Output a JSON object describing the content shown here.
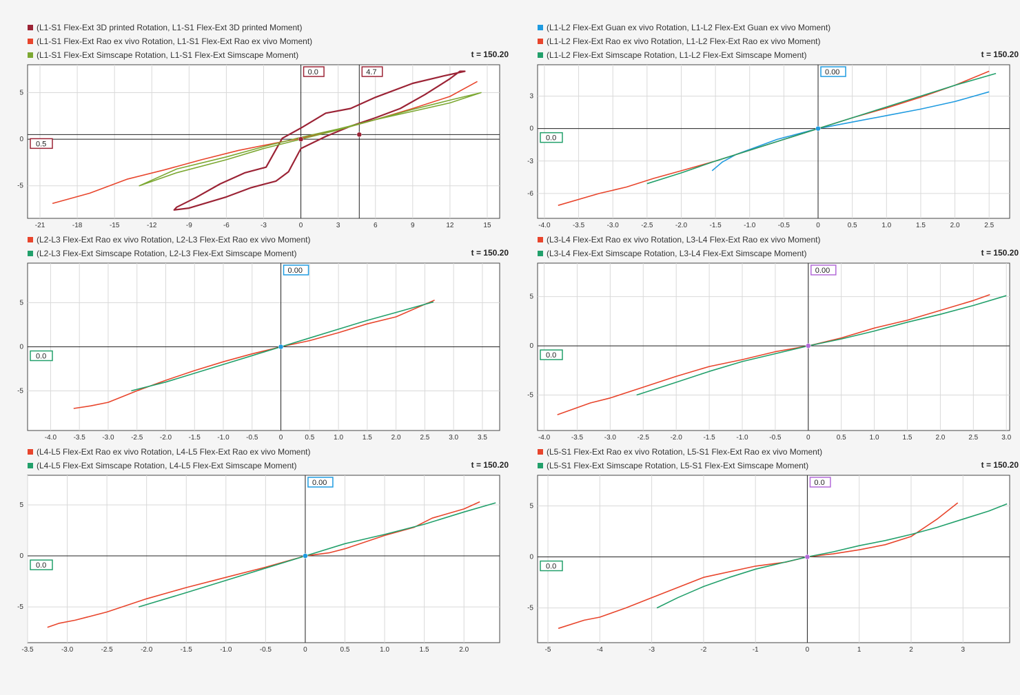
{
  "time_label": "t = 150.20",
  "chart_data": [
    {
      "type": "line",
      "xlim": [
        -22,
        16
      ],
      "ylim": [
        -8.5,
        8
      ],
      "xticks": [
        "-21",
        "-18",
        "-15",
        "-12",
        "-9",
        "-6",
        "-3",
        "0",
        "3",
        "6",
        "9",
        "12",
        "15"
      ],
      "yticks": [
        "5",
        "0",
        "-5"
      ],
      "grid": true,
      "legend_position": "top-left",
      "cursor_x": [
        {
          "value": "0.0",
          "x": 0,
          "color": "#9b2335"
        },
        {
          "value": "4.7",
          "x": 4.7,
          "color": "#9b2335"
        }
      ],
      "cursor_y": [
        {
          "value": "0.5",
          "y": 0.5,
          "color": "#9b2335"
        }
      ],
      "series": [
        {
          "name": "(L1-S1 Flex-Ext 3D printed  Rotation, L1-S1 Flex-Ext 3D printed  Moment)",
          "color": "#9b2335",
          "loop": true,
          "x": [
            -2.8,
            -4.5,
            -6.5,
            -8.5,
            -10,
            -10.2,
            -9,
            -6,
            -4,
            -2,
            -1,
            0,
            2,
            4,
            6,
            8,
            10,
            12,
            12.8,
            13.2,
            11.5,
            9,
            6,
            4,
            2,
            0,
            -1.5
          ],
          "y": [
            -3.0,
            -3.6,
            -4.8,
            -6.3,
            -7.3,
            -7.6,
            -7.4,
            -6.2,
            -5.2,
            -4.5,
            -3.5,
            -1.0,
            0.3,
            1.4,
            2.3,
            3.3,
            4.8,
            6.5,
            7.3,
            7.3,
            6.8,
            6.0,
            4.5,
            3.3,
            2.8,
            1.2,
            0.1
          ]
        },
        {
          "name": "(L1-S1 Flex-Ext Rao ex vivo Rotation, L1-S1 Flex-Ext Rao ex vivo Moment)",
          "color": "#e8452c",
          "x": [
            -20,
            -17,
            -14,
            -11,
            -8,
            -5,
            -2,
            0,
            3,
            6,
            9,
            12,
            14.2
          ],
          "y": [
            -6.9,
            -5.8,
            -4.3,
            -3.3,
            -2.2,
            -1.2,
            -0.4,
            0.1,
            1.0,
            2.1,
            3.3,
            4.6,
            6.2
          ]
        },
        {
          "name": "(L1-S1 Flex-Ext Simscape Rotation, L1-S1 Flex-Ext Simscape Moment)",
          "color": "#7ca832",
          "loop": true,
          "x": [
            -13,
            -10,
            -6,
            -3,
            0,
            3,
            6,
            9,
            12,
            14.5,
            12,
            9,
            6,
            3,
            0,
            -3,
            -6,
            -10
          ],
          "y": [
            -5.0,
            -3.6,
            -2.2,
            -1.0,
            0.0,
            1.0,
            2.1,
            3.2,
            4.2,
            5.0,
            3.9,
            3.0,
            2.1,
            1.1,
            0.2,
            -0.8,
            -1.9,
            -3.2
          ]
        }
      ]
    },
    {
      "type": "line",
      "xlim": [
        -4.1,
        2.8
      ],
      "ylim": [
        -8.3,
        5.9
      ],
      "xticks": [
        "-4.0",
        "-3.5",
        "-3.0",
        "-2.5",
        "-2.0",
        "-1.5",
        "-1.0",
        "-0.5",
        "0",
        "0.5",
        "1.0",
        "1.5",
        "2.0",
        "2.5"
      ],
      "yticks": [
        "3",
        "0",
        "-3",
        "-6"
      ],
      "grid": true,
      "legend_position": "top-left",
      "cursor_x": [
        {
          "value": "0.00",
          "x": 0,
          "color": "#1f9be0"
        }
      ],
      "cursor_y": [
        {
          "value": "0.0",
          "y": 0,
          "color": "#22a06b"
        }
      ],
      "series": [
        {
          "name": "(L1-L2 Flex-Ext Guan ex vivo Rotation, L1-L2 Flex-Ext Guan ex vivo Moment)",
          "color": "#1f9be0",
          "x": [
            -1.55,
            -1.4,
            -1.2,
            -0.9,
            -0.6,
            -0.3,
            0,
            0.5,
            1.0,
            1.5,
            2.0,
            2.5
          ],
          "y": [
            -3.9,
            -3.1,
            -2.4,
            -1.7,
            -1.0,
            -0.5,
            0,
            0.6,
            1.2,
            1.8,
            2.5,
            3.4
          ]
        },
        {
          "name": "(L1-L2 Flex-Ext Rao ex vivo Rotation, L1-L2 Flex-Ext Rao ex vivo Moment)",
          "color": "#e8452c",
          "x": [
            -3.8,
            -3.2,
            -2.8,
            -2.4,
            -2.0,
            -1.5,
            -1.0,
            -0.5,
            0,
            0.5,
            1.0,
            1.5,
            2.0,
            2.5
          ],
          "y": [
            -7.1,
            -6.0,
            -5.4,
            -4.6,
            -3.9,
            -3.0,
            -2.0,
            -1.0,
            0,
            1.0,
            1.9,
            2.9,
            4.0,
            5.3
          ]
        },
        {
          "name": "(L1-L2 Flex-Ext Simscape Rotation, L1-L2 Flex-Ext Simscape Moment)",
          "color": "#22a06b",
          "x": [
            -2.5,
            -2.0,
            -1.5,
            -1.0,
            -0.5,
            0,
            0.5,
            1.0,
            1.5,
            2.0,
            2.6
          ],
          "y": [
            -5.1,
            -4.1,
            -3.0,
            -2.0,
            -1.0,
            0,
            1.0,
            2.0,
            3.0,
            4.0,
            5.1
          ]
        }
      ]
    },
    {
      "type": "line",
      "xlim": [
        -4.4,
        3.8
      ],
      "ylim": [
        -9.5,
        9.5
      ],
      "xticks": [
        "-4.0",
        "-3.5",
        "-3.0",
        "-2.5",
        "-2.0",
        "-1.5",
        "-1.0",
        "-0.5",
        "0",
        "0.5",
        "1.0",
        "1.5",
        "2.0",
        "2.5",
        "3.0",
        "3.5"
      ],
      "yticks": [
        "5",
        "0",
        "-5"
      ],
      "grid": true,
      "legend_position": "top-left",
      "cursor_x": [
        {
          "value": "0.00",
          "x": 0,
          "color": "#1f9be0"
        }
      ],
      "cursor_y": [
        {
          "value": "0.0",
          "y": 0,
          "color": "#22a06b"
        }
      ],
      "series": [
        {
          "name": "(L2-L3 Flex-Ext Rao ex vivo Rotation, L2-L3 Flex-Ext Rao ex vivo Moment)",
          "color": "#e8452c",
          "x": [
            -3.6,
            -3.3,
            -3.0,
            -2.5,
            -2.0,
            -1.5,
            -1.0,
            -0.5,
            0,
            0.5,
            1.0,
            1.5,
            2.0,
            2.67
          ],
          "y": [
            -7.0,
            -6.7,
            -6.3,
            -5.0,
            -3.8,
            -2.7,
            -1.7,
            -0.8,
            0,
            0.7,
            1.6,
            2.6,
            3.4,
            5.3
          ]
        },
        {
          "name": "(L2-L3 Flex-Ext Simscape Rotation, L2-L3 Flex-Ext Simscape Moment)",
          "color": "#22a06b",
          "x": [
            -2.6,
            -2.0,
            -1.5,
            -1.0,
            -0.5,
            0,
            0.5,
            1.0,
            1.5,
            2.0,
            2.65
          ],
          "y": [
            -5.0,
            -4.0,
            -3.0,
            -2.0,
            -1.0,
            0,
            1.0,
            2.0,
            3.0,
            3.9,
            5.1
          ]
        }
      ]
    },
    {
      "type": "line",
      "xlim": [
        -4.1,
        3.05
      ],
      "ylim": [
        -8.6,
        8.4
      ],
      "xticks": [
        "-4.0",
        "-3.5",
        "-3.0",
        "-2.5",
        "-2.0",
        "-1.5",
        "-1.0",
        "-0.5",
        "0",
        "0.5",
        "1.0",
        "1.5",
        "2.0",
        "2.5",
        "3.0"
      ],
      "yticks": [
        "5",
        "0",
        "-5"
      ],
      "grid": true,
      "legend_position": "top-left",
      "cursor_x": [
        {
          "value": "0.00",
          "x": 0,
          "color": "#b36ad9"
        }
      ],
      "cursor_y": [
        {
          "value": "0.0",
          "y": 0,
          "color": "#22a06b"
        }
      ],
      "series": [
        {
          "name": "(L3-L4 Flex-Ext Rao ex vivo Rotation, L3-L4 Flex-Ext Rao ex vivo Moment)",
          "color": "#e8452c",
          "x": [
            -3.8,
            -3.3,
            -3.0,
            -2.5,
            -2.0,
            -1.5,
            -1.0,
            -0.5,
            0,
            0.5,
            1.0,
            1.5,
            2.0,
            2.5,
            2.75
          ],
          "y": [
            -7.0,
            -5.8,
            -5.3,
            -4.2,
            -3.1,
            -2.1,
            -1.4,
            -0.6,
            0,
            0.8,
            1.8,
            2.6,
            3.6,
            4.6,
            5.2
          ]
        },
        {
          "name": "(L3-L4 Flex-Ext Simscape Rotation, L3-L4 Flex-Ext Simscape Moment)",
          "color": "#22a06b",
          "x": [
            -2.6,
            -2.0,
            -1.5,
            -1.0,
            -0.5,
            0,
            0.5,
            1.0,
            1.5,
            2.0,
            2.5,
            3.0
          ],
          "y": [
            -5.0,
            -3.7,
            -2.6,
            -1.6,
            -0.8,
            0,
            0.7,
            1.5,
            2.4,
            3.2,
            4.1,
            5.1
          ]
        }
      ]
    },
    {
      "type": "line",
      "xlim": [
        -3.5,
        2.45
      ],
      "ylim": [
        -8.5,
        7.9
      ],
      "xticks": [
        "-3.5",
        "-3.0",
        "-2.5",
        "-2.0",
        "-1.5",
        "-1.0",
        "-0.5",
        "0",
        "0.5",
        "1.0",
        "1.5",
        "2.0"
      ],
      "yticks": [
        "5",
        "0",
        "-5"
      ],
      "grid": true,
      "legend_position": "top-left",
      "cursor_x": [
        {
          "value": "0.00",
          "x": 0,
          "color": "#1f9be0"
        }
      ],
      "cursor_y": [
        {
          "value": "0.0",
          "y": 0,
          "color": "#22a06b"
        }
      ],
      "series": [
        {
          "name": "(L4-L5 Flex-Ext Rao ex vivo Rotation, L4-L5 Flex-Ext Rao ex vivo Moment)",
          "color": "#e8452c",
          "x": [
            -3.25,
            -3.1,
            -2.9,
            -2.5,
            -2.0,
            -1.5,
            -1.0,
            -0.5,
            0,
            0.3,
            0.5,
            1.0,
            1.37,
            1.6,
            2.0,
            2.2
          ],
          "y": [
            -7.0,
            -6.6,
            -6.3,
            -5.5,
            -4.2,
            -3.1,
            -2.1,
            -1.1,
            0,
            0.3,
            0.7,
            2.0,
            2.8,
            3.7,
            4.6,
            5.3
          ]
        },
        {
          "name": "(L4-L5 Flex-Ext Simscape Rotation, L4-L5 Flex-Ext Simscape Moment)",
          "color": "#22a06b",
          "x": [
            -2.1,
            -1.5,
            -1.0,
            -0.5,
            0,
            0.5,
            1.0,
            1.5,
            2.0,
            2.4
          ],
          "y": [
            -5.0,
            -3.6,
            -2.4,
            -1.2,
            0,
            1.2,
            2.1,
            3.1,
            4.3,
            5.2
          ]
        }
      ]
    },
    {
      "type": "line",
      "xlim": [
        -5.2,
        3.9
      ],
      "ylim": [
        -8.4,
        8.0
      ],
      "xticks": [
        "-5",
        "-4",
        "-3",
        "-2",
        "-1",
        "0",
        "1",
        "2",
        "3"
      ],
      "yticks": [
        "5",
        "0",
        "-5"
      ],
      "grid": true,
      "legend_position": "top-left",
      "cursor_x": [
        {
          "value": "0.0",
          "x": 0,
          "color": "#b36ad9"
        }
      ],
      "cursor_y": [
        {
          "value": "0.0",
          "y": 0,
          "color": "#22a06b"
        }
      ],
      "series": [
        {
          "name": "(L5-S1 Flex-Ext Rao ex vivo Rotation, L5-S1 Flex-Ext Rao ex vivo Moment)",
          "color": "#e8452c",
          "x": [
            -4.8,
            -4.3,
            -4.0,
            -3.5,
            -3.0,
            -2.0,
            -1.0,
            -0.4,
            0,
            0.5,
            1.0,
            1.5,
            2.0,
            2.5,
            2.9
          ],
          "y": [
            -7.0,
            -6.2,
            -5.9,
            -5.0,
            -4.0,
            -2.0,
            -0.9,
            -0.5,
            0,
            0.3,
            0.7,
            1.2,
            2.0,
            3.7,
            5.3
          ]
        },
        {
          "name": "(L5-S1 Flex-Ext Simscape Rotation, L5-S1 Flex-Ext Simscape Moment)",
          "color": "#22a06b",
          "x": [
            -2.9,
            -2.5,
            -2.0,
            -1.5,
            -1.0,
            -0.5,
            0,
            0.5,
            1.0,
            1.5,
            2.0,
            2.5,
            3.0,
            3.5,
            3.85
          ],
          "y": [
            -5.0,
            -4.0,
            -2.9,
            -2.0,
            -1.2,
            -0.6,
            0,
            0.5,
            1.1,
            1.6,
            2.2,
            2.9,
            3.7,
            4.5,
            5.2
          ]
        }
      ]
    }
  ]
}
